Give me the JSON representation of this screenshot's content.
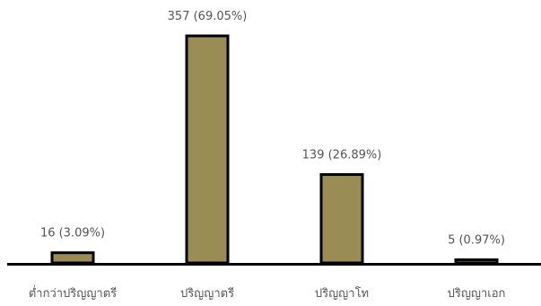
{
  "chart_data": {
    "type": "bar",
    "categories": [
      "ต่ำกว่าปริญญาตรี",
      "ปริญญาตรี",
      "ปริญญาโท",
      "ปริญญาเอก"
    ],
    "values": [
      16,
      357,
      139,
      5
    ],
    "data_labels": [
      "16 (3.09%)",
      "357 (69.05%)",
      "139 (26.89%)",
      "5 (0.97%)"
    ],
    "title": "",
    "xlabel": "",
    "ylabel": "",
    "ylim": [
      0,
      357
    ],
    "grid": false,
    "legend": "none",
    "bar_color": "#9a8c55",
    "bar_edge_color": "#000000",
    "axis_color": "#000000",
    "text_color": "#555555"
  }
}
